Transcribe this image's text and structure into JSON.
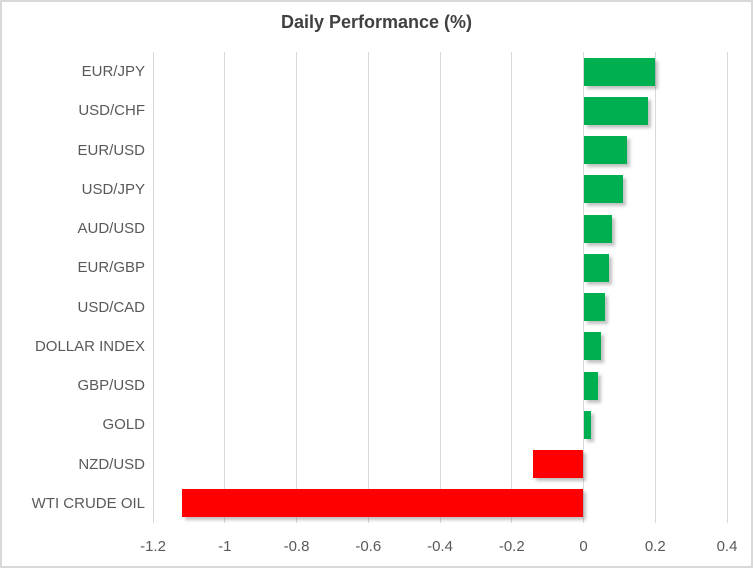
{
  "title": "Daily Performance (%)",
  "colors": {
    "positive_bar": "#00B050",
    "negative_bar": "#FF0000",
    "gridline": "#D9D9D9",
    "chart_border": "#D9D9D9",
    "title_text": "#404040",
    "axis_text": "#595959",
    "background": "#FFFFFF"
  },
  "chart_data": {
    "type": "bar",
    "orientation": "horizontal",
    "title": "Daily Performance (%)",
    "categories": [
      "EUR/JPY",
      "USD/CHF",
      "EUR/USD",
      "USD/JPY",
      "AUD/USD",
      "EUR/GBP",
      "USD/CAD",
      "DOLLAR INDEX",
      "GBP/USD",
      "GOLD",
      "NZD/USD",
      "WTI CRUDE OIL"
    ],
    "values": [
      0.2,
      0.18,
      0.12,
      0.11,
      0.08,
      0.07,
      0.06,
      0.05,
      0.04,
      0.02,
      -0.14,
      -1.12
    ],
    "xlabel": "",
    "ylabel": "",
    "xlim": [
      -1.2,
      0.4
    ],
    "xticks": [
      -1.2,
      -1.0,
      -0.8,
      -0.6,
      -0.4,
      -0.2,
      0,
      0.2,
      0.4
    ],
    "xtick_labels": [
      "-1.2",
      "-1",
      "-0.8",
      "-0.6",
      "-0.4",
      "-0.2",
      "0",
      "0.2",
      "0.4"
    ],
    "grid": true,
    "legend": false
  }
}
